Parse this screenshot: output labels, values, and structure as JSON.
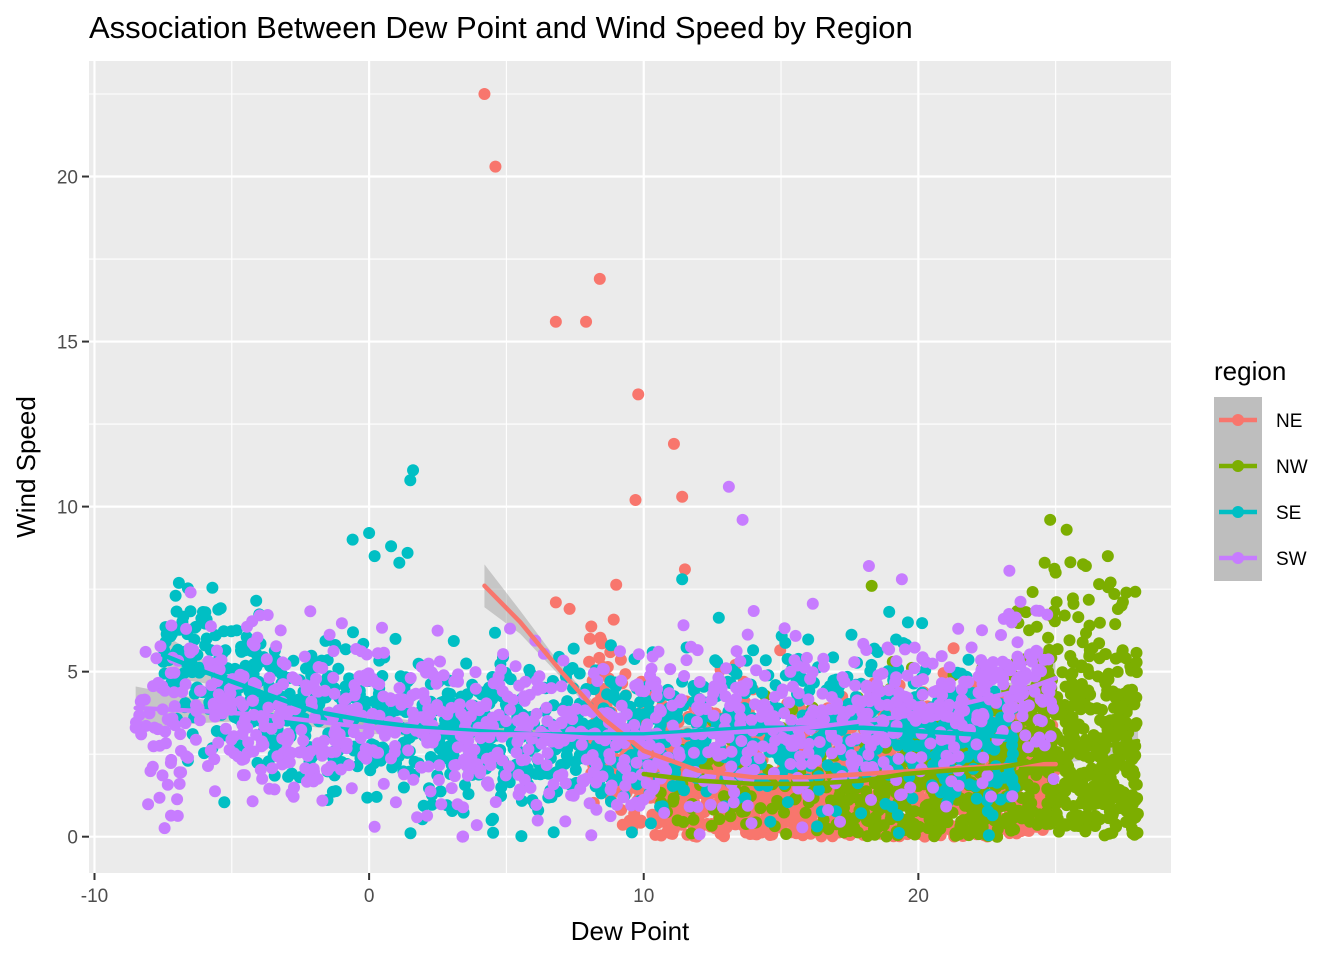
{
  "chart_data": {
    "type": "scatter",
    "title": "Association Between Dew Point and Wind Speed by Region",
    "xlabel": "Dew Point",
    "ylabel": "Wind Speed",
    "xlim": [
      -10.2,
      29.2
    ],
    "ylim": [
      -1.1,
      23.5
    ],
    "x_ticks": [
      -10,
      0,
      10,
      20
    ],
    "y_ticks": [
      0,
      5,
      10,
      15,
      20
    ],
    "x_tick_labels": [
      "-10",
      "0",
      "10",
      "20"
    ],
    "y_tick_labels": [
      "0",
      "5",
      "10",
      "15",
      "20"
    ],
    "grid": true,
    "legend": {
      "title": "region",
      "position": "right"
    },
    "series": [
      {
        "name": "NE",
        "color": "#F8766D",
        "x_range": [
          4,
          25
        ],
        "outliers": [
          [
            4.2,
            22.5
          ],
          [
            4.6,
            20.3
          ],
          [
            8.4,
            16.9
          ],
          [
            6.8,
            15.6
          ],
          [
            7.9,
            15.6
          ],
          [
            9.8,
            13.4
          ],
          [
            11.1,
            11.9
          ],
          [
            9.7,
            10.2
          ],
          [
            11.4,
            10.3
          ],
          [
            11.5,
            8.1
          ],
          [
            6.8,
            7.1
          ],
          [
            7.3,
            6.9
          ]
        ],
        "smooth": [
          [
            4.2,
            7.6
          ],
          [
            5.5,
            6.5
          ],
          [
            7.0,
            5.0
          ],
          [
            8.5,
            3.6
          ],
          [
            10.0,
            2.6
          ],
          [
            12.0,
            2.0
          ],
          [
            14.0,
            1.8
          ],
          [
            16.0,
            1.8
          ],
          [
            18.0,
            1.9
          ],
          [
            20.0,
            2.0
          ],
          [
            22.0,
            2.1
          ],
          [
            24.0,
            2.2
          ],
          [
            25.0,
            2.2
          ]
        ]
      },
      {
        "name": "NW",
        "color": "#7CAE00",
        "x_range": [
          10,
          28
        ],
        "outliers": [
          [
            24.8,
            9.6
          ],
          [
            25.4,
            9.3
          ],
          [
            26.9,
            8.5
          ],
          [
            24.6,
            8.3
          ],
          [
            25.0,
            8.0
          ],
          [
            26.1,
            8.2
          ],
          [
            27.0,
            7.7
          ],
          [
            18.3,
            7.6
          ],
          [
            27.4,
            7.0
          ],
          [
            27.8,
            0.1
          ],
          [
            27.2,
            0.3
          ]
        ],
        "smooth": [
          [
            10.0,
            1.9
          ],
          [
            12.0,
            1.7
          ],
          [
            14.0,
            1.6
          ],
          [
            16.0,
            1.6
          ],
          [
            18.0,
            1.7
          ],
          [
            19.5,
            1.9
          ],
          [
            21.0,
            2.0
          ],
          [
            23.0,
            2.1
          ],
          [
            25.0,
            2.4
          ],
          [
            26.5,
            2.7
          ],
          [
            28.0,
            2.9
          ]
        ]
      },
      {
        "name": "SE",
        "color": "#00BFC4",
        "x_range": [
          -7.5,
          23.5
        ],
        "outliers": [
          [
            1.6,
            11.1
          ],
          [
            1.5,
            10.8
          ],
          [
            0,
            9.2
          ],
          [
            -0.6,
            9.0
          ],
          [
            0.2,
            8.5
          ],
          [
            0.8,
            8.8
          ],
          [
            1.4,
            8.6
          ],
          [
            1.1,
            8.3
          ],
          [
            -7.5,
            5.3
          ],
          [
            -6.6,
            2.3
          ],
          [
            11.4,
            7.8
          ]
        ],
        "smooth": [
          [
            -7.5,
            5.5
          ],
          [
            -6.0,
            5.0
          ],
          [
            -4.0,
            4.4
          ],
          [
            -2.0,
            3.8
          ],
          [
            0.0,
            3.5
          ],
          [
            2.0,
            3.3
          ],
          [
            4.0,
            3.2
          ],
          [
            6.0,
            3.1
          ],
          [
            8.0,
            3.1
          ],
          [
            10.0,
            3.1
          ],
          [
            12.0,
            3.2
          ],
          [
            14.0,
            3.3
          ],
          [
            16.0,
            3.3
          ],
          [
            18.0,
            3.3
          ],
          [
            20.0,
            3.2
          ],
          [
            22.0,
            3.1
          ],
          [
            23.5,
            3.0
          ]
        ]
      },
      {
        "name": "SW",
        "color": "#C77CFF",
        "x_range": [
          -8.5,
          25
        ],
        "outliers": [
          [
            -8.5,
            3.3
          ],
          [
            -8.3,
            3.1
          ],
          [
            -6.5,
            7.4
          ],
          [
            -7.2,
            6.4
          ],
          [
            -6.9,
            1.6
          ],
          [
            13.1,
            10.6
          ],
          [
            13.6,
            9.6
          ],
          [
            18.2,
            8.2
          ],
          [
            19.4,
            7.8
          ],
          [
            0.2,
            0.3
          ],
          [
            3.4,
            0.0
          ]
        ],
        "smooth": [
          [
            -8.5,
            3.9
          ],
          [
            -6.0,
            3.8
          ],
          [
            -4.0,
            3.7
          ],
          [
            -2.0,
            3.5
          ],
          [
            0.0,
            3.3
          ],
          [
            2.0,
            3.2
          ],
          [
            4.0,
            3.1
          ],
          [
            6.0,
            3.1
          ],
          [
            8.0,
            3.0
          ],
          [
            10.0,
            3.0
          ],
          [
            12.0,
            3.1
          ],
          [
            14.0,
            3.2
          ],
          [
            16.0,
            3.3
          ],
          [
            18.0,
            3.5
          ],
          [
            20.0,
            3.7
          ],
          [
            22.0,
            4.1
          ],
          [
            24.0,
            4.5
          ],
          [
            25.0,
            4.8
          ]
        ]
      }
    ]
  }
}
